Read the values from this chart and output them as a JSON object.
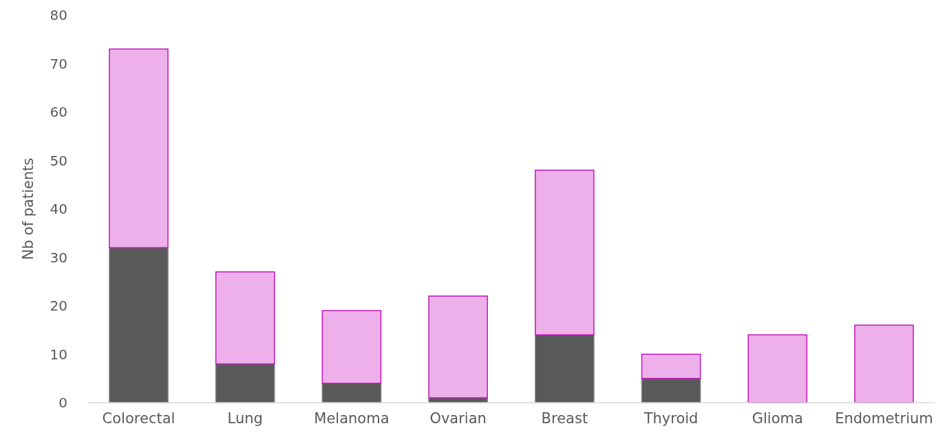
{
  "chart_data": {
    "type": "bar",
    "stacked": true,
    "ylabel": "Nb of patients",
    "categories": [
      "Colorectal",
      "Lung",
      "Melanoma",
      "Ovarian",
      "Breast",
      "Thyroid",
      "Glioma",
      "Endometrium"
    ],
    "series": [
      {
        "color": "#595959",
        "values": [
          32,
          8,
          4,
          1,
          14,
          5,
          0,
          0
        ]
      },
      {
        "color": "#edb0ea",
        "values": [
          41,
          19,
          15,
          21,
          34,
          5,
          14,
          16
        ]
      }
    ],
    "ylim": [
      0,
      80
    ],
    "yticks": [
      0,
      10,
      20,
      30,
      40,
      50,
      60,
      70,
      80
    ],
    "grid": false
  }
}
